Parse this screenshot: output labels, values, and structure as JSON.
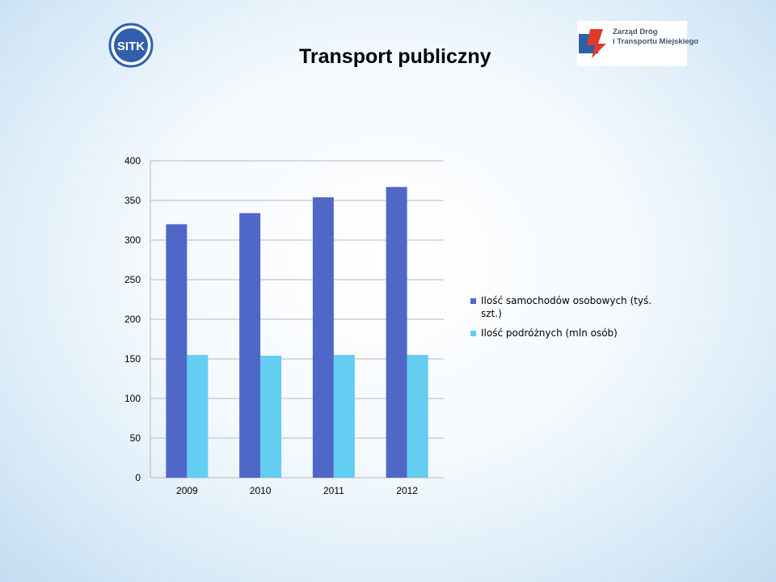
{
  "title": "Transport publiczny",
  "logos": {
    "left": {
      "icon": "sitk-logo",
      "text": "SITK",
      "color": "#2f5fad"
    },
    "right": {
      "icon": "zdtm-logo",
      "line1": "Zarząd Dróg",
      "line2": "i Transportu Miejskiego"
    }
  },
  "chart_data": {
    "type": "bar",
    "categories": [
      "2009",
      "2010",
      "2011",
      "2012"
    ],
    "series": [
      {
        "name": "Ilość samochodów osobowych (tyś. szt.)",
        "values": [
          320,
          334,
          354,
          367
        ],
        "color": "#4f68c8"
      },
      {
        "name": "Ilość podróżnych (mln osób)",
        "values": [
          155,
          154,
          155,
          155
        ],
        "color": "#63cdf2"
      }
    ],
    "yticks": [
      "0",
      "50",
      "100",
      "150",
      "200",
      "250",
      "300",
      "350",
      "400"
    ],
    "ylim": [
      0,
      400
    ],
    "grid": true,
    "legend_position": "right"
  }
}
